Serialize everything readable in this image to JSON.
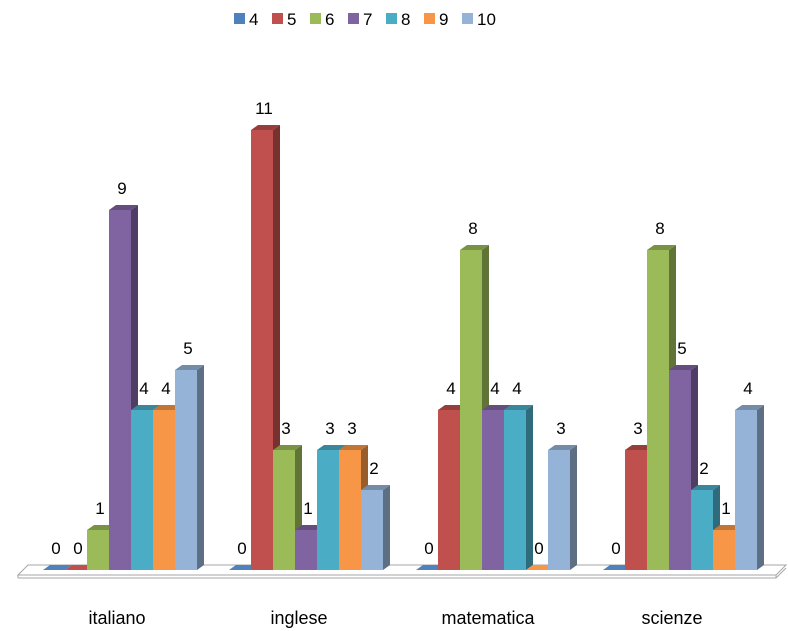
{
  "chart_data": {
    "type": "bar",
    "title": "",
    "xlabel": "",
    "ylabel": "",
    "categories": [
      "italiano",
      "inglese",
      "matematica",
      "scienze"
    ],
    "series": [
      {
        "name": "4",
        "values": [
          0,
          0,
          0,
          0
        ]
      },
      {
        "name": "5",
        "values": [
          0,
          11,
          4,
          3
        ]
      },
      {
        "name": "6",
        "values": [
          1,
          3,
          8,
          8
        ]
      },
      {
        "name": "7",
        "values": [
          9,
          1,
          4,
          5
        ]
      },
      {
        "name": "8",
        "values": [
          4,
          3,
          4,
          2
        ]
      },
      {
        "name": "9",
        "values": [
          4,
          3,
          0,
          1
        ]
      },
      {
        "name": "10",
        "values": [
          5,
          2,
          3,
          4
        ]
      }
    ],
    "ylim": [
      0,
      11
    ],
    "grid": false,
    "legend_position": "top",
    "style": "3d-clustered-column",
    "colors": [
      "#4F81BD",
      "#C0504D",
      "#9BBB59",
      "#8064A2",
      "#4BACC6",
      "#F79646",
      "#95B3D7"
    ]
  }
}
